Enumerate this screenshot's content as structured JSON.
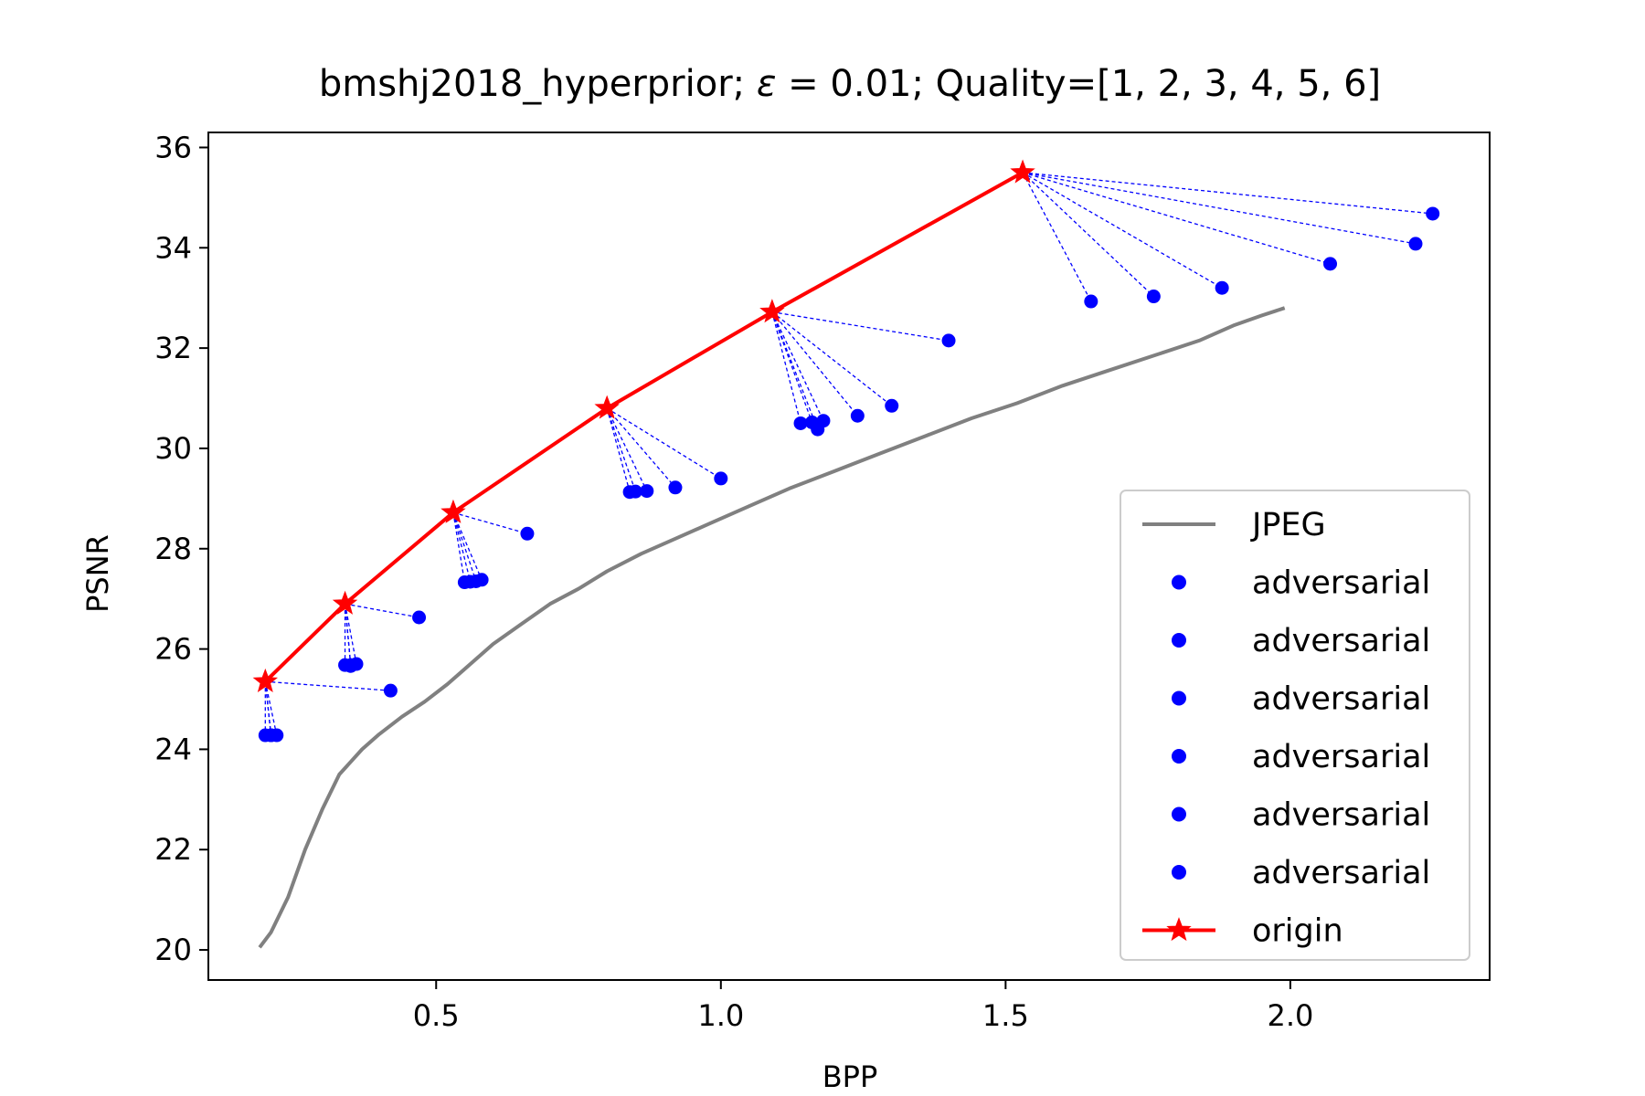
{
  "chart_data": {
    "type": "line",
    "title": {
      "prefix": "bmshj2018_hyperprior; ",
      "epsilon_symbol": "ε",
      "epsilon_value": " = 0.01; Quality=[1, 2, 3, 4, 5, 6]"
    },
    "xlabel": "BPP",
    "ylabel": "PSNR",
    "xlim": [
      0.1,
      2.35
    ],
    "ylim": [
      19.4,
      36.3
    ],
    "x_ticks": [
      {
        "value": 0.5,
        "label": "0.5"
      },
      {
        "value": 1.0,
        "label": "1.0"
      },
      {
        "value": 1.5,
        "label": "1.5"
      },
      {
        "value": 2.0,
        "label": "2.0"
      }
    ],
    "y_ticks": [
      {
        "value": 20,
        "label": "20"
      },
      {
        "value": 22,
        "label": "22"
      },
      {
        "value": 24,
        "label": "24"
      },
      {
        "value": 26,
        "label": "26"
      },
      {
        "value": 28,
        "label": "28"
      },
      {
        "value": 30,
        "label": "30"
      },
      {
        "value": 32,
        "label": "32"
      },
      {
        "value": 34,
        "label": "34"
      },
      {
        "value": 36,
        "label": "36"
      }
    ],
    "grid": false,
    "legend_position": "lower-right",
    "colors": {
      "jpeg": "#808080",
      "adversarial": "#0000ff",
      "origin": "#ff0000"
    },
    "jpeg": {
      "name": "JPEG",
      "points": [
        [
          0.19,
          20.05
        ],
        [
          0.21,
          20.35
        ],
        [
          0.24,
          21.05
        ],
        [
          0.27,
          22.0
        ],
        [
          0.3,
          22.8
        ],
        [
          0.33,
          23.5
        ],
        [
          0.37,
          24.0
        ],
        [
          0.4,
          24.3
        ],
        [
          0.44,
          24.65
        ],
        [
          0.48,
          24.95
        ],
        [
          0.52,
          25.3
        ],
        [
          0.56,
          25.7
        ],
        [
          0.6,
          26.1
        ],
        [
          0.65,
          26.5
        ],
        [
          0.7,
          26.9
        ],
        [
          0.75,
          27.2
        ],
        [
          0.8,
          27.55
        ],
        [
          0.86,
          27.9
        ],
        [
          0.92,
          28.2
        ],
        [
          0.98,
          28.5
        ],
        [
          1.05,
          28.85
        ],
        [
          1.12,
          29.2
        ],
        [
          1.2,
          29.55
        ],
        [
          1.28,
          29.9
        ],
        [
          1.36,
          30.25
        ],
        [
          1.44,
          30.6
        ],
        [
          1.52,
          30.9
        ],
        [
          1.6,
          31.25
        ],
        [
          1.68,
          31.55
        ],
        [
          1.76,
          31.85
        ],
        [
          1.84,
          32.15
        ],
        [
          1.9,
          32.45
        ],
        [
          1.95,
          32.65
        ],
        [
          1.99,
          32.8
        ]
      ]
    },
    "origin": {
      "name": "origin",
      "points": [
        [
          0.2,
          25.35
        ],
        [
          0.34,
          26.9
        ],
        [
          0.53,
          28.72
        ],
        [
          0.8,
          30.8
        ],
        [
          1.09,
          32.72
        ],
        [
          1.53,
          35.5
        ]
      ]
    },
    "adversarial": [
      {
        "name": "adversarial",
        "points": [
          [
            0.2,
            24.28
          ],
          [
            0.22,
            24.28
          ],
          [
            0.21,
            24.28
          ],
          [
            0.21,
            24.28
          ],
          [
            0.42,
            25.17
          ]
        ]
      },
      {
        "name": "adversarial",
        "points": [
          [
            0.34,
            25.68
          ],
          [
            0.35,
            25.68
          ],
          [
            0.36,
            25.7
          ],
          [
            0.35,
            25.66
          ],
          [
            0.47,
            26.63
          ]
        ]
      },
      {
        "name": "adversarial",
        "points": [
          [
            0.55,
            27.33
          ],
          [
            0.56,
            27.34
          ],
          [
            0.57,
            27.35
          ],
          [
            0.58,
            27.38
          ],
          [
            0.66,
            28.3
          ]
        ]
      },
      {
        "name": "adversarial",
        "points": [
          [
            0.84,
            29.13
          ],
          [
            0.85,
            29.14
          ],
          [
            0.87,
            29.15
          ],
          [
            0.92,
            29.22
          ],
          [
            1.0,
            29.4
          ]
        ]
      },
      {
        "name": "adversarial",
        "points": [
          [
            1.14,
            30.5
          ],
          [
            1.16,
            30.52
          ],
          [
            1.17,
            30.38
          ],
          [
            1.18,
            30.55
          ],
          [
            1.24,
            30.65
          ],
          [
            1.3,
            30.85
          ],
          [
            1.4,
            32.15
          ]
        ]
      },
      {
        "name": "adversarial",
        "points": [
          [
            1.65,
            32.93
          ],
          [
            1.76,
            33.03
          ],
          [
            1.88,
            33.2
          ],
          [
            2.07,
            33.68
          ],
          [
            2.22,
            34.08
          ],
          [
            2.25,
            34.68
          ]
        ]
      }
    ]
  }
}
